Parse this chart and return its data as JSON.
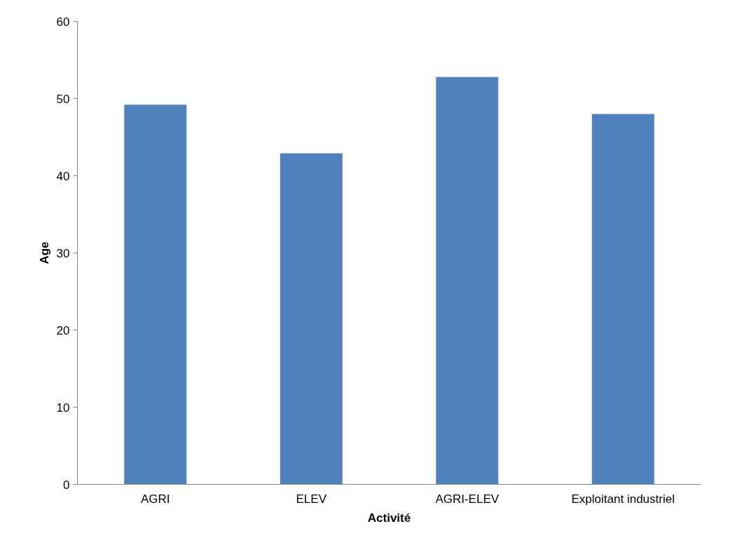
{
  "chart_data": {
    "type": "bar",
    "xlabel": "Activité",
    "ylabel": "Age",
    "categories": [
      "AGRI",
      "ELEV",
      "AGRI-ELEV",
      "Exploitant industriel"
    ],
    "values": [
      49.2,
      42.9,
      52.8,
      48.0
    ],
    "color": "#4f81bd",
    "ylim": [
      0,
      60
    ],
    "yticks": [
      0,
      10,
      20,
      30,
      40,
      50,
      60
    ],
    "grid": false
  }
}
